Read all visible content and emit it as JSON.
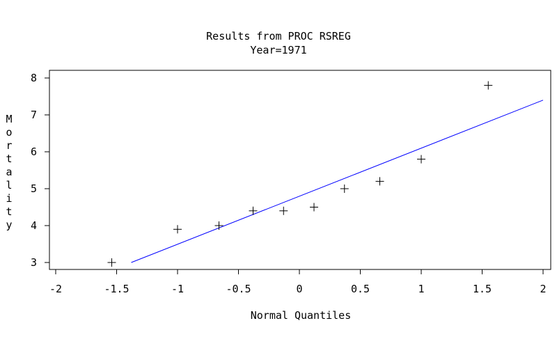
{
  "chart_data": {
    "type": "scatter",
    "title": "Results from PROC RSREG",
    "subtitle": "Year=1971",
    "xlabel": "Normal Quantiles",
    "ylabel": "Mortality",
    "xlim": [
      -2,
      2
    ],
    "ylim": [
      3,
      8
    ],
    "xticks": [
      "-2",
      "-1.5",
      "-1",
      "-0.5",
      "0",
      "0.5",
      "1",
      "1.5",
      "2"
    ],
    "yticks": [
      "3",
      "4",
      "5",
      "6",
      "7",
      "8"
    ],
    "grid": false,
    "legend": "none",
    "series": [
      {
        "marker": "plus",
        "color": "#000000",
        "points": [
          {
            "x": -1.54,
            "y": 3.0
          },
          {
            "x": -1.0,
            "y": 3.9
          },
          {
            "x": -0.66,
            "y": 4.0
          },
          {
            "x": -0.38,
            "y": 4.4
          },
          {
            "x": -0.13,
            "y": 4.4
          },
          {
            "x": 0.12,
            "y": 4.5
          },
          {
            "x": 0.37,
            "y": 5.0
          },
          {
            "x": 0.66,
            "y": 5.2
          },
          {
            "x": 1.0,
            "y": 5.8
          },
          {
            "x": 1.55,
            "y": 7.8
          }
        ]
      }
    ],
    "fit_line": {
      "color": "#0000ff",
      "points": [
        {
          "x": -1.38,
          "y": 3.0
        },
        {
          "x": 2.0,
          "y": 7.4
        }
      ]
    }
  }
}
